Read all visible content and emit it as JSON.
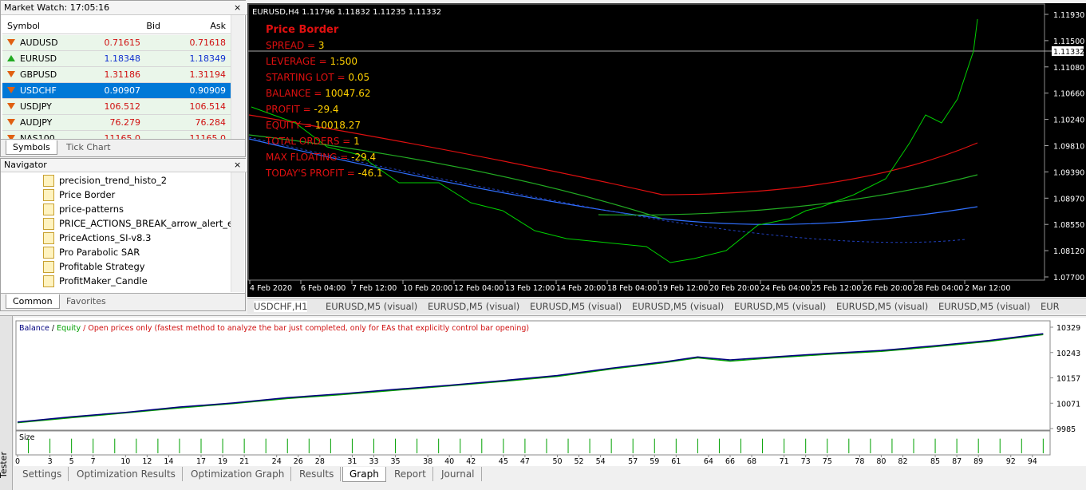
{
  "market_watch": {
    "title": "Market Watch: 17:05:16",
    "columns": [
      "Symbol",
      "Bid",
      "Ask"
    ],
    "rows": [
      [
        "AUDUSD",
        "0.71615",
        "0.71618"
      ],
      [
        "EURUSD",
        "1.18348",
        "1.18349"
      ],
      [
        "GBPUSD",
        "1.31186",
        "1.31194"
      ],
      [
        "USDCHF",
        "0.90907",
        "0.90909"
      ],
      [
        "USDJPY",
        "106.512",
        "106.514"
      ],
      [
        "AUDJPY",
        "76.279",
        "76.284"
      ],
      [
        "NAS100",
        "11165.0",
        "11165.0"
      ]
    ],
    "tabs": [
      "Symbols",
      "Tick Chart"
    ]
  },
  "navigator": {
    "title": "Navigator",
    "items": [
      "precision_trend_histo_2",
      "Price Border",
      "price-patterns",
      "PRICE_ACTIONS_BREAK_arrow_alert_ema",
      "PriceActions_SI-v8.3",
      "Pro Parabolic SAR",
      "Profitable Strategy",
      "ProfitMaker_Candle"
    ],
    "tabs": [
      "Common",
      "Favorites"
    ]
  },
  "price_chart": {
    "header": "EURUSD,H4  1.11796 1.11832 1.11235 1.11332",
    "indicator": "Price Border",
    "stats": [
      {
        "label": "SPREAD = ",
        "value": "3"
      },
      {
        "label": "LEVERAGE = ",
        "value": "1:500"
      },
      {
        "label": "STARTING LOT = ",
        "value": "0.05"
      },
      {
        "label": "BALANCE = ",
        "value": "10047.62"
      },
      {
        "label": "PROFIT = ",
        "value": "-29.4"
      },
      {
        "label": "EQUITY = ",
        "value": "10018.27"
      },
      {
        "label": "TOTAL ORDERS = ",
        "value": "1"
      },
      {
        "label": "MAX FLOATING = ",
        "value": "-29.4"
      },
      {
        "label": "TODAY'S PROFIT = ",
        "value": "-46.1"
      }
    ],
    "price_axis": [
      "1.11930",
      "1.11500",
      "1.11080",
      "1.10660",
      "1.10240",
      "1.09810",
      "1.09390",
      "1.08970",
      "1.08550",
      "1.08120",
      "1.07700"
    ],
    "current_price": "1.11332",
    "time_axis": [
      "4 Feb 2020",
      "6 Feb 04:00",
      "7 Feb 12:00",
      "10 Feb 20:00",
      "12 Feb 04:00",
      "13 Feb 12:00",
      "14 Feb 20:00",
      "18 Feb 04:00",
      "19 Feb 12:00",
      "20 Feb 20:00",
      "24 Feb 04:00",
      "25 Feb 12:00",
      "26 Feb 20:00",
      "28 Feb 04:00",
      "2 Mar 12:00"
    ]
  },
  "chart_tabs": [
    "USDCHF,H1",
    "EURUSD,M5 (visual)",
    "EURUSD,M5 (visual)",
    "EURUSD,M5 (visual)",
    "EURUSD,M5 (visual)",
    "EURUSD,M5 (visual)",
    "EURUSD,M5 (visual)",
    "EURUSD,M5 (visual)",
    "EUR"
  ],
  "tester": {
    "label": "Tester",
    "mode": "/ Open prices only (fastest method to analyze the bar just completed, only for EAs that explicitly control bar opening)",
    "separator": "/",
    "graph": {
      "type": "line",
      "x": [
        0,
        5,
        10,
        15,
        20,
        25,
        30,
        35,
        40,
        45,
        50,
        55,
        60,
        63,
        66,
        70,
        75,
        80,
        85,
        90,
        95
      ],
      "series": [
        {
          "name": "Balance",
          "color": "#00007f",
          "values": [
            10007,
            10025,
            10040,
            10058,
            10072,
            10090,
            10103,
            10118,
            10132,
            10148,
            10165,
            10190,
            10212,
            10228,
            10218,
            10228,
            10240,
            10250,
            10266,
            10284,
            10307
          ]
        },
        {
          "name": "Equity",
          "color": "#00a000",
          "values": [
            10005,
            10022,
            10038,
            10055,
            10070,
            10087,
            10100,
            10115,
            10130,
            10145,
            10162,
            10187,
            10209,
            10225,
            10214,
            10225,
            10237,
            10247,
            10263,
            10281,
            10304
          ]
        }
      ],
      "xlim": [
        0,
        96
      ],
      "ylim": [
        9985,
        10329
      ],
      "yticks": [
        10329,
        10243,
        10157,
        10071,
        9985
      ],
      "xticks": [
        0,
        3,
        5,
        7,
        10,
        12,
        14,
        17,
        19,
        21,
        24,
        26,
        28,
        31,
        33,
        35,
        38,
        40,
        42,
        45,
        47,
        50,
        52,
        54,
        57,
        59,
        61,
        64,
        66,
        68,
        71,
        73,
        75,
        78,
        80,
        82,
        85,
        87,
        89,
        92,
        94
      ],
      "size": {
        "name": "Size",
        "color": "#00a000",
        "x": [
          1,
          3,
          5,
          7,
          9,
          11,
          13,
          15,
          17,
          19,
          21,
          23,
          25,
          27,
          29,
          31,
          33,
          35,
          37,
          39,
          41,
          43,
          45,
          47,
          49,
          51,
          53,
          55,
          57,
          59,
          61,
          63,
          65,
          67,
          69,
          71,
          73,
          75,
          77,
          79,
          81,
          83,
          85,
          87,
          89,
          91,
          93,
          95
        ],
        "values": [
          0.05,
          0.05,
          0.05,
          0.05,
          0.05,
          0.05,
          0.05,
          0.05,
          0.05,
          0.05,
          0.05,
          0.05,
          0.05,
          0.05,
          0.05,
          0.05,
          0.05,
          0.05,
          0.05,
          0.05,
          0.05,
          0.05,
          0.05,
          0.05,
          0.05,
          0.05,
          0.05,
          0.05,
          0.05,
          0.05,
          0.05,
          0.05,
          0.05,
          0.05,
          0.05,
          0.05,
          0.05,
          0.05,
          0.05,
          0.05,
          0.05,
          0.05,
          0.05,
          0.05,
          0.05,
          0.05,
          0.05,
          0.05
        ],
        "ylim": [
          0,
          0.06
        ]
      }
    },
    "tabs": [
      "Settings",
      "Optimization Results",
      "Optimization Graph",
      "Results",
      "Graph",
      "Report",
      "Journal"
    ],
    "active_tab": "Graph"
  }
}
